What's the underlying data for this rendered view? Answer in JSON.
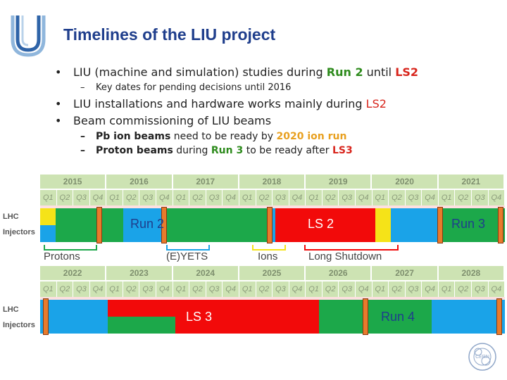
{
  "header": {
    "title": "Timelines of the LIU project"
  },
  "bullets": {
    "b1": {
      "dot": "•",
      "t1": "LIU (machine and simulation) studies during ",
      "run2": "Run 2",
      "t2": " until ",
      "ls2": "LS2"
    },
    "b1a": {
      "dash": "–",
      "t": "Key dates for pending decisions until 2016"
    },
    "b2": {
      "dot": "•",
      "t1": "LIU installations and hardware works mainly during ",
      "ls2": "LS2"
    },
    "b3": {
      "dot": "•",
      "t": "Beam commissioning of LIU beams"
    },
    "b3a": {
      "dash": "–",
      "t1": "Pb ion beams",
      "t2": " need to be ready by ",
      "y": "2020 ion run"
    },
    "b3b": {
      "dash": "–",
      "t1": "Proton beams",
      "t2": " during ",
      "run3": "Run 3",
      "t3": " to be ready after ",
      "ls3": "LS3"
    }
  },
  "timeline1": {
    "years": [
      "2015",
      "2016",
      "2017",
      "2018",
      "2019",
      "2020",
      "2021"
    ],
    "quarters": [
      "Q1",
      "Q2",
      "Q3",
      "Q4"
    ],
    "row_labels": [
      "LHC",
      "Injectors"
    ],
    "labels": {
      "run2": "Run 2",
      "ls2": "LS 2",
      "run3": "Run 3"
    }
  },
  "timeline2": {
    "years": [
      "2022",
      "2023",
      "2024",
      "2025",
      "2026",
      "2027",
      "2028"
    ],
    "quarters": [
      "Q1",
      "Q2",
      "Q3",
      "Q4"
    ],
    "row_labels": [
      "LHC",
      "Injectors"
    ],
    "labels": {
      "ls3": "LS 3",
      "run4": "Run 4"
    }
  },
  "legend": {
    "protons": "Protons",
    "yets": "(E)YETS",
    "ions": "Ions",
    "long_shutdown": "Long Shutdown"
  },
  "colors": {
    "title": "#1f3e8c",
    "run_green": "#1ca84a",
    "shutdown_red": "#f20a0a",
    "yets_blue": "#1aa3e8",
    "ions_yellow": "#f5e318",
    "marker_orange": "#e87b2c"
  }
}
